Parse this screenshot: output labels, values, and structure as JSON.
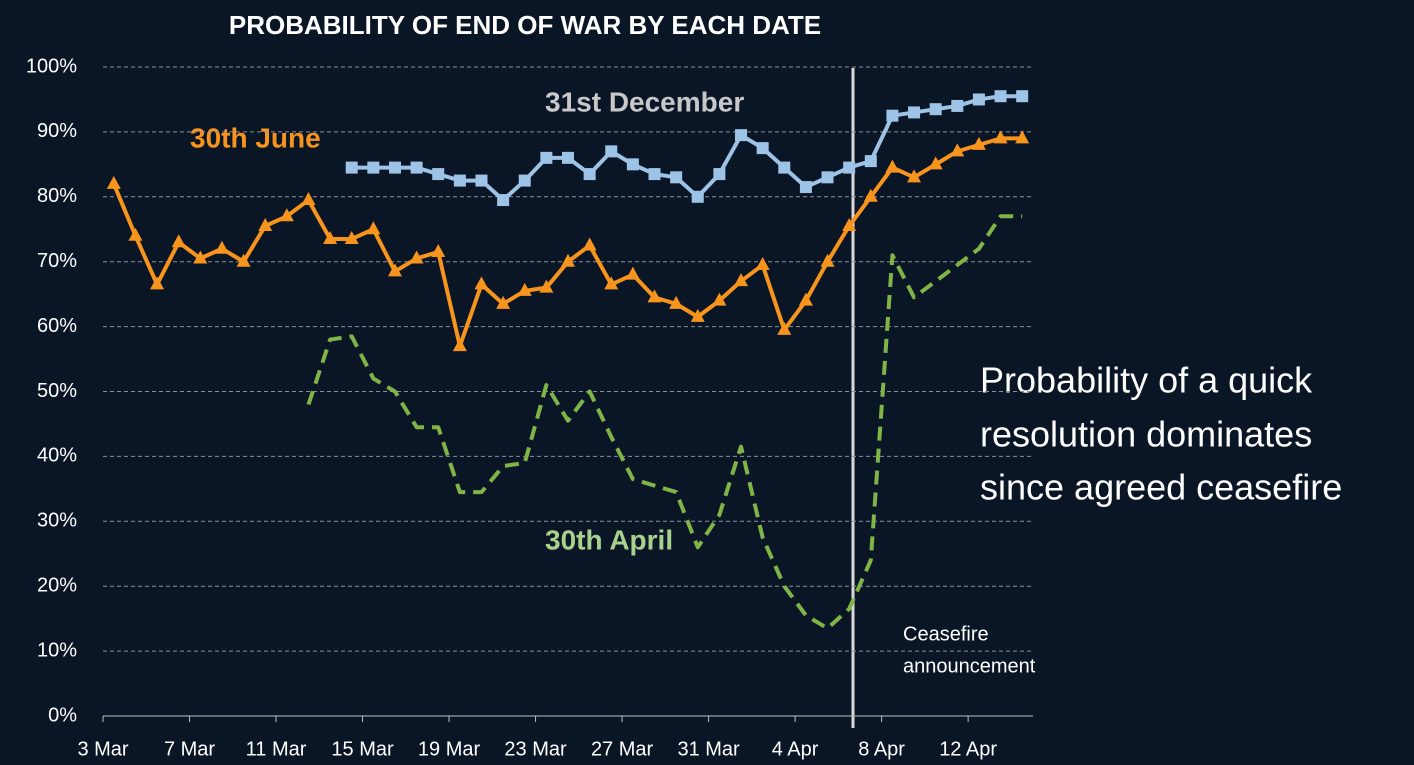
{
  "chart_data": {
    "type": "line",
    "title": "PROBABILITY OF END OF WAR BY EACH DATE",
    "categories": [
      "3 Mar",
      null,
      null,
      null,
      "7 Mar",
      null,
      null,
      null,
      "11 Mar",
      null,
      null,
      null,
      "15 Mar",
      null,
      null,
      null,
      "19 Mar",
      null,
      null,
      null,
      "23 Mar",
      null,
      null,
      null,
      "27 Mar",
      null,
      null,
      null,
      "31 Mar",
      null,
      null,
      null,
      "4 Apr",
      null,
      null,
      null,
      "8 Apr",
      null,
      null,
      null,
      "12 Apr",
      null,
      null
    ],
    "series": [
      {
        "name": "30th June",
        "color": "#f7941d",
        "marker": "triangle",
        "dashed": false,
        "values": [
          82,
          74,
          66.5,
          73,
          70.5,
          72,
          70,
          75.5,
          77,
          79.5,
          73.5,
          73.5,
          75,
          68.5,
          70.5,
          71.5,
          57,
          66.5,
          63.5,
          65.5,
          66,
          70,
          72.5,
          66.5,
          68,
          64.5,
          63.5,
          61.5,
          64,
          67,
          69.5,
          59.5,
          64,
          70,
          75.5,
          80,
          84.5,
          83,
          85,
          87,
          88,
          89,
          89
        ]
      },
      {
        "name": "31st December",
        "color": "#9dc3e6",
        "marker": "square",
        "dashed": false,
        "values": [
          null,
          null,
          null,
          null,
          null,
          null,
          null,
          null,
          null,
          null,
          null,
          84.5,
          84.5,
          84.5,
          84.5,
          83.5,
          82.5,
          82.5,
          79.5,
          82.5,
          86,
          86,
          83.5,
          87,
          85,
          83.5,
          83,
          80,
          83.5,
          89.5,
          87.5,
          84.5,
          81.5,
          83,
          84.5,
          85.5,
          92.5,
          93,
          93.5,
          94,
          95,
          95.5,
          95.5
        ]
      },
      {
        "name": "30th April",
        "color": "#7fb446",
        "marker": "none",
        "dashed": true,
        "values": [
          null,
          null,
          null,
          null,
          null,
          null,
          null,
          null,
          null,
          48,
          58,
          58.5,
          52,
          50,
          44.5,
          44.5,
          34.5,
          34.5,
          38.5,
          39,
          51,
          45.5,
          50,
          43,
          36.5,
          35.5,
          34.5,
          26,
          31,
          41.5,
          27.5,
          20,
          15.5,
          13.5,
          16.5,
          24,
          71,
          64.5,
          67,
          69.5,
          72,
          77,
          77
        ]
      }
    ],
    "ylim": [
      0,
      100
    ],
    "yticks": [
      {
        "value": 0,
        "label": "0%"
      },
      {
        "value": 10,
        "label": "10%"
      },
      {
        "value": 20,
        "label": "20%"
      },
      {
        "value": 30,
        "label": "30%"
      },
      {
        "value": 40,
        "label": "40%"
      },
      {
        "value": 50,
        "label": "50%"
      },
      {
        "value": 60,
        "label": "60%"
      },
      {
        "value": 70,
        "label": "70%"
      },
      {
        "value": 80,
        "label": "80%"
      },
      {
        "value": 90,
        "label": "90%"
      },
      {
        "value": 100,
        "label": "100%"
      }
    ],
    "grid": true,
    "annotations": [
      "Ceasefire",
      "announcement",
      "Probability of a quick",
      "resolution dominates",
      "since agreed ceasefire"
    ]
  }
}
